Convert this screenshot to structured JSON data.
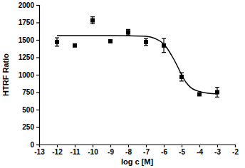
{
  "chart_data": {
    "type": "scatter",
    "x_label": "log c [M]",
    "y_label": "HTRF Ratio",
    "xlim": [
      -13,
      -2
    ],
    "ylim": [
      0,
      2000
    ],
    "xticks": [
      -13,
      -12,
      -11,
      -10,
      -9,
      -8,
      -7,
      -6,
      -5,
      -4,
      -3,
      -2
    ],
    "yticks": [
      0,
      250,
      500,
      750,
      1000,
      1250,
      1500,
      1750,
      2000
    ],
    "series": [
      {
        "type": "scatter",
        "marker": "square",
        "color": "#000000",
        "x": [
          -12,
          -11,
          -10,
          -9,
          -8,
          -7,
          -6,
          -5,
          -4,
          -3
        ],
        "values": [
          1470,
          1420,
          1780,
          1480,
          1610,
          1470,
          1420,
          970,
          720,
          750
        ],
        "errors": [
          60,
          15,
          50,
          20,
          40,
          50,
          100,
          60,
          15,
          70
        ]
      },
      {
        "type": "line",
        "color": "#000000",
        "x": [
          -12,
          -9,
          -8,
          -7,
          -6.5,
          -6,
          -5.5,
          -5.25,
          -5,
          -4.75,
          -4.5,
          -4,
          -3.5,
          -3
        ],
        "values": [
          1560,
          1560,
          1558,
          1550,
          1520,
          1440,
          1250,
          1130,
          1000,
          890,
          820,
          760,
          735,
          728
        ]
      }
    ]
  }
}
